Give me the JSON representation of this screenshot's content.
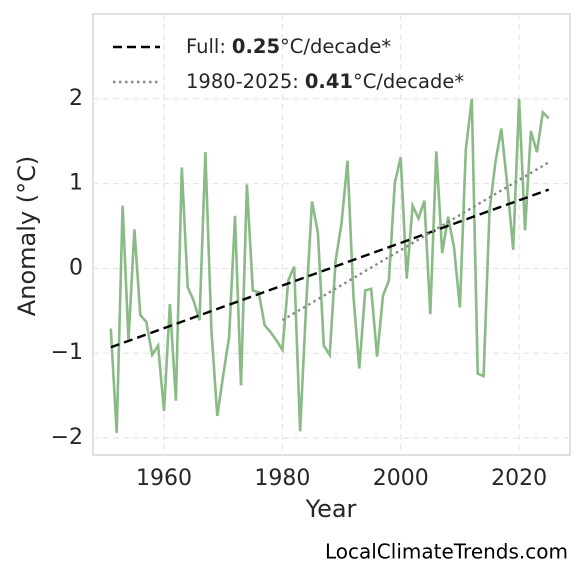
{
  "chart_data": {
    "type": "line",
    "xlabel": "Year",
    "ylabel": "Anomaly (°C)",
    "source": "LocalClimateTrends.com",
    "xlim": [
      1948,
      2028.6
    ],
    "ylim": [
      -2.2,
      3
    ],
    "xticks": [
      1960,
      1980,
      2000,
      2020
    ],
    "yticks": [
      {
        "value": -2,
        "label": "−2"
      },
      {
        "value": -1,
        "label": "−1"
      },
      0,
      1,
      2
    ],
    "grid": true,
    "legend": "upper left",
    "legend_unit": "°C/decade*",
    "series": [
      {
        "name": "Anomaly",
        "color": "#8aba85",
        "style": "solid",
        "x": [
          1951,
          1952,
          1953,
          1954,
          1955,
          1956,
          1957,
          1958,
          1959,
          1960,
          1961,
          1962,
          1963,
          1964,
          1965,
          1966,
          1967,
          1968,
          1969,
          1970,
          1971,
          1972,
          1973,
          1974,
          1975,
          1976,
          1977,
          1978,
          1979,
          1980,
          1981,
          1982,
          1983,
          1984,
          1985,
          1986,
          1987,
          1988,
          1989,
          1990,
          1991,
          1992,
          1993,
          1994,
          1995,
          1996,
          1997,
          1998,
          1999,
          2000,
          2001,
          2002,
          2003,
          2004,
          2005,
          2006,
          2007,
          2008,
          2009,
          2010,
          2011,
          2012,
          2013,
          2014,
          2015,
          2016,
          2017,
          2018,
          2019,
          2020,
          2021,
          2022,
          2023,
          2024,
          2025
        ],
        "values": [
          -0.71,
          -1.94,
          0.74,
          -0.85,
          0.46,
          -0.55,
          -0.63,
          -1.02,
          -0.91,
          -1.68,
          -0.42,
          -1.56,
          1.19,
          -0.22,
          -0.38,
          -0.61,
          1.37,
          -0.73,
          -1.74,
          -1.26,
          -0.81,
          0.62,
          -1.38,
          0.99,
          -0.26,
          -0.28,
          -0.67,
          -0.75,
          -0.85,
          -0.96,
          -0.14,
          0.02,
          -1.92,
          -0.44,
          0.79,
          0.42,
          -0.91,
          -1.02,
          0.09,
          0.54,
          1.27,
          -0.32,
          -1.18,
          -0.26,
          -0.24,
          -1.04,
          -0.32,
          -0.14,
          1.01,
          1.31,
          -0.12,
          0.74,
          0.59,
          0.8,
          -0.54,
          1.38,
          0.18,
          0.61,
          0.25,
          -0.46,
          1.4,
          2.0,
          -1.24,
          -1.27,
          0.68,
          1.25,
          1.65,
          0.98,
          0.22,
          2.0,
          0.45,
          1.62,
          1.37,
          1.84,
          1.77
        ]
      },
      {
        "name": "Full:",
        "rate": 0.25,
        "color": "#000000",
        "style": "dashed",
        "legend_entry": true,
        "x": [
          1951,
          2025
        ],
        "values": [
          -0.93,
          0.93
        ]
      },
      {
        "name": "1980-2025:",
        "rate": 0.41,
        "color": "#888888",
        "style": "dotted",
        "legend_entry": true,
        "x": [
          1980,
          2025
        ],
        "values": [
          -0.61,
          1.25
        ]
      }
    ]
  }
}
